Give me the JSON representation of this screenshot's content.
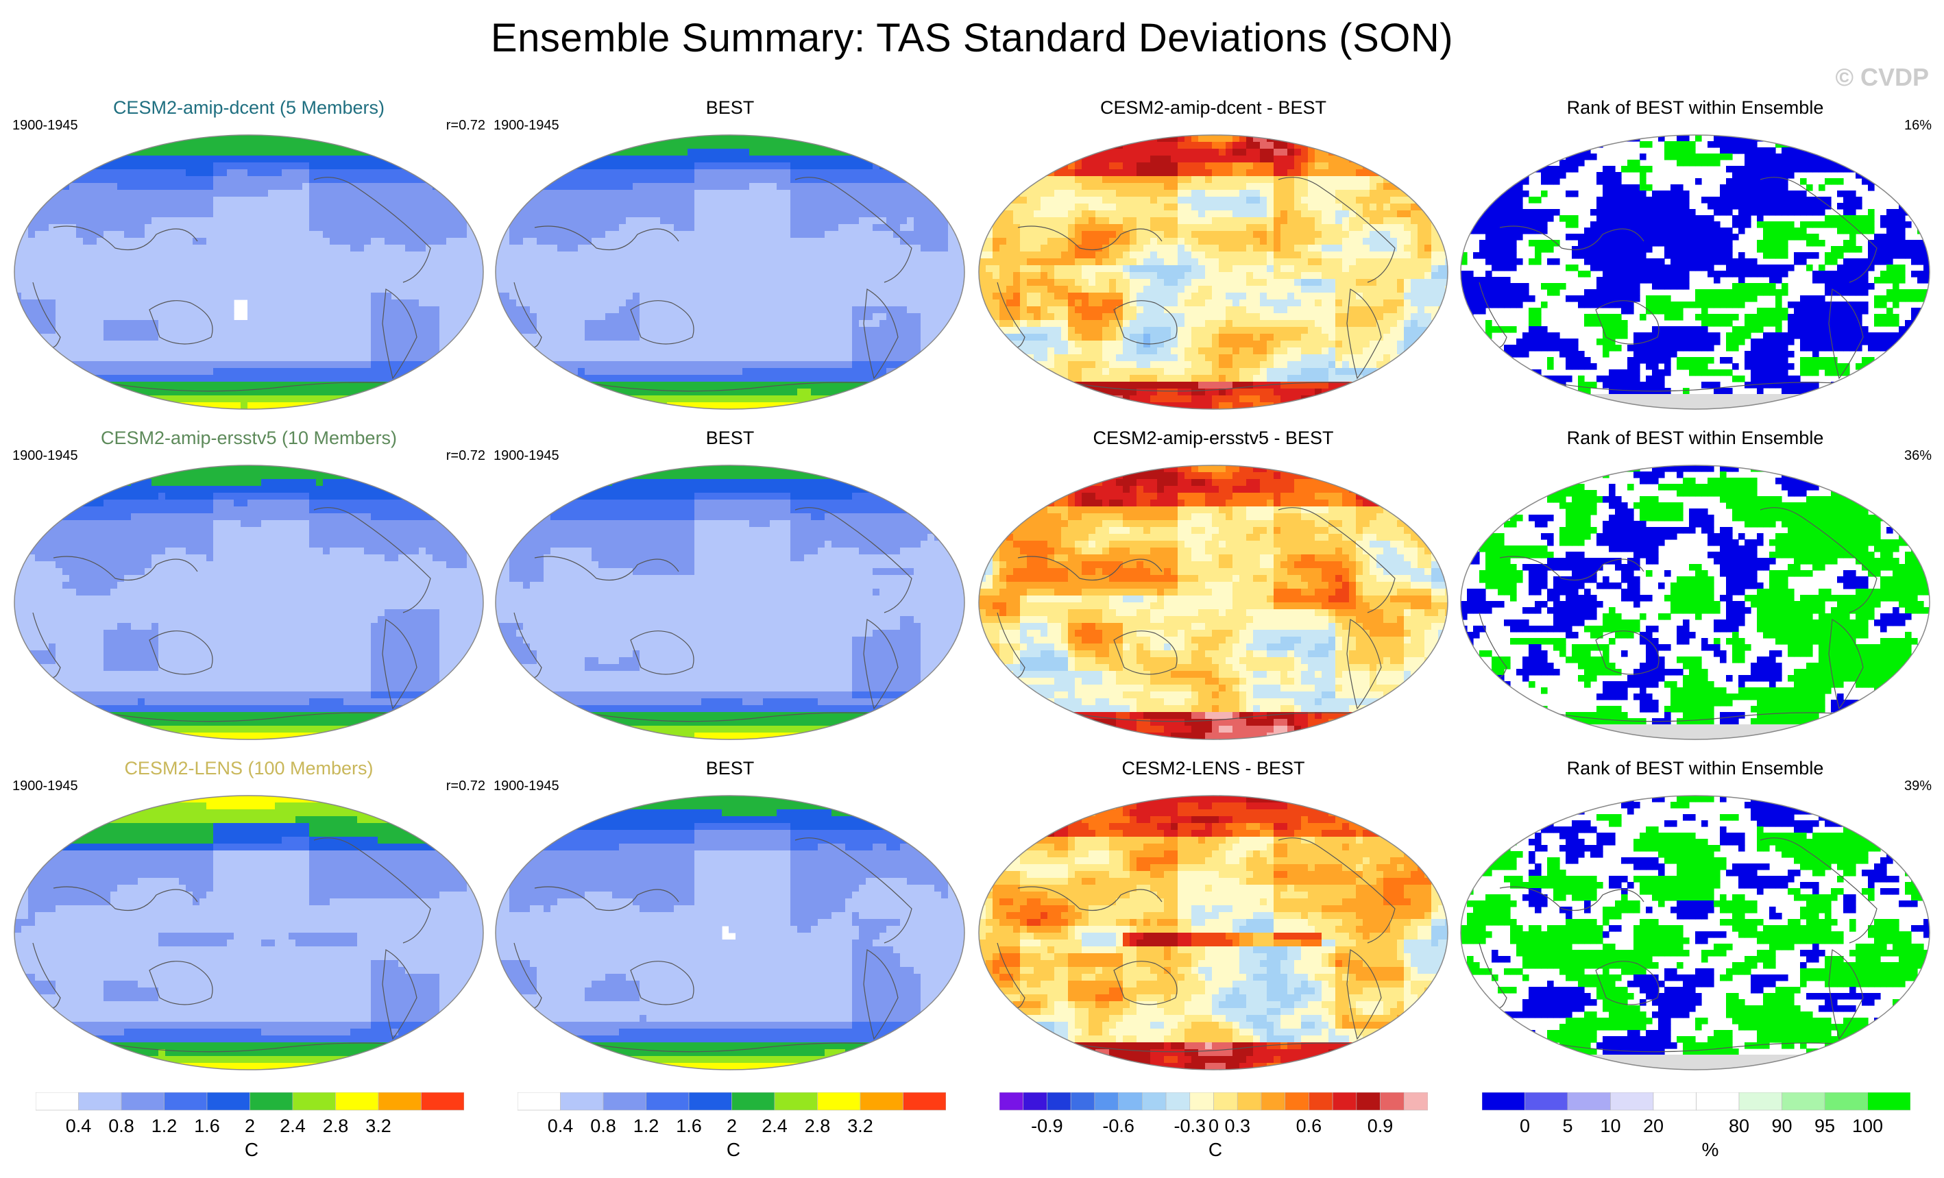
{
  "title": "Ensemble Summary: TAS Standard Deviations (SON)",
  "watermark": "© CVDP",
  "rows": [
    {
      "model": {
        "title": "CESM2-amip-dcent (5 Members)",
        "title_color": "#1f6f80",
        "period": "1900-1945",
        "corr": "r=0.72"
      },
      "obs": {
        "title": "BEST",
        "period": "1900-1945"
      },
      "diff": {
        "title": "CESM2-amip-dcent - BEST"
      },
      "rank": {
        "title": "Rank of BEST within Ensemble",
        "percent": "16%",
        "fraction_top": 0.16
      }
    },
    {
      "model": {
        "title": "CESM2-amip-ersstv5 (10 Members)",
        "title_color": "#5d8a5a",
        "period": "1900-1945",
        "corr": "r=0.72"
      },
      "obs": {
        "title": "BEST",
        "period": "1900-1945"
      },
      "diff": {
        "title": "CESM2-amip-ersstv5 - BEST"
      },
      "rank": {
        "title": "Rank of BEST within Ensemble",
        "percent": "36%",
        "fraction_top": 0.36
      }
    },
    {
      "model": {
        "title": "CESM2-LENS (100 Members)",
        "title_color": "#c9b75a",
        "period": "1900-1945",
        "corr": "r=0.72"
      },
      "obs": {
        "title": "BEST",
        "period": "1900-1945"
      },
      "diff": {
        "title": "CESM2-LENS - BEST"
      },
      "rank": {
        "title": "Rank of BEST within Ensemble",
        "percent": "39%",
        "fraction_top": 0.39
      }
    }
  ],
  "colorbars": {
    "stddev": {
      "colors": [
        "#ffffff",
        "#b4c6fa",
        "#7f98f0",
        "#4673f0",
        "#1e5ee6",
        "#22b43c",
        "#96e61e",
        "#ffff00",
        "#ffa500",
        "#ff3c14"
      ],
      "ticks": [
        "0.4",
        "0.8",
        "1.2",
        "1.6",
        "2",
        "2.4",
        "2.8",
        "3.2"
      ],
      "unit": "C"
    },
    "diff": {
      "colors": [
        "#7814e6",
        "#3c14dc",
        "#1e3cdc",
        "#3c6ee6",
        "#5a96f0",
        "#82b9f5",
        "#a5d2f5",
        "#c8e6f5",
        "#fffac8",
        "#ffeb8c",
        "#ffcd50",
        "#ffa528",
        "#ff7814",
        "#f04614",
        "#dc1e1e",
        "#b41414",
        "#e66464",
        "#f5b4b4"
      ],
      "ticks": [
        "-0.9",
        "-0.6",
        "-0.3",
        "0",
        "0.3",
        "0.6",
        "0.9"
      ],
      "unit": "C"
    },
    "rank": {
      "colors": [
        "#0000e6",
        "#5a5af0",
        "#aaaaf5",
        "#dcdcfa",
        "#ffffff",
        "#ffffff",
        "#dcfadc",
        "#aaf5aa",
        "#78f078",
        "#00f000"
      ],
      "ticks": [
        "0",
        "5",
        "10",
        "20",
        "80",
        "90",
        "95",
        "100"
      ],
      "unit": "%"
    }
  },
  "chart_data": [
    {
      "type": "heatmap",
      "title": "CESM2-amip-dcent (5 Members)",
      "variable": "TAS standard deviation",
      "season": "SON",
      "period": "1900-1945",
      "pattern_correlation": 0.72,
      "units": "C",
      "levels": [
        0.4,
        0.8,
        1.2,
        1.6,
        2,
        2.4,
        2.8,
        3.2
      ]
    },
    {
      "type": "heatmap",
      "title": "BEST",
      "period": "1900-1945",
      "units": "C",
      "levels": [
        0.4,
        0.8,
        1.2,
        1.6,
        2,
        2.4,
        2.8,
        3.2
      ]
    },
    {
      "type": "heatmap",
      "title": "CESM2-amip-dcent - BEST",
      "units": "C",
      "levels": [
        -0.9,
        -0.6,
        -0.3,
        0,
        0.3,
        0.6,
        0.9
      ]
    },
    {
      "type": "heatmap",
      "title": "Rank of BEST within Ensemble",
      "units": "%",
      "percent_label": "16%",
      "levels": [
        0,
        5,
        10,
        20,
        80,
        90,
        95,
        100
      ]
    },
    {
      "type": "heatmap",
      "title": "CESM2-amip-ersstv5 (10 Members)",
      "period": "1900-1945",
      "pattern_correlation": 0.72,
      "units": "C"
    },
    {
      "type": "heatmap",
      "title": "BEST",
      "period": "1900-1945",
      "units": "C"
    },
    {
      "type": "heatmap",
      "title": "CESM2-amip-ersstv5 - BEST",
      "units": "C"
    },
    {
      "type": "heatmap",
      "title": "Rank of BEST within Ensemble",
      "units": "%",
      "percent_label": "36%"
    },
    {
      "type": "heatmap",
      "title": "CESM2-LENS (100 Members)",
      "period": "1900-1945",
      "pattern_correlation": 0.72,
      "units": "C"
    },
    {
      "type": "heatmap",
      "title": "BEST",
      "period": "1900-1945",
      "units": "C"
    },
    {
      "type": "heatmap",
      "title": "CESM2-LENS - BEST",
      "units": "C"
    },
    {
      "type": "heatmap",
      "title": "Rank of BEST within Ensemble",
      "units": "%",
      "percent_label": "39%"
    }
  ]
}
